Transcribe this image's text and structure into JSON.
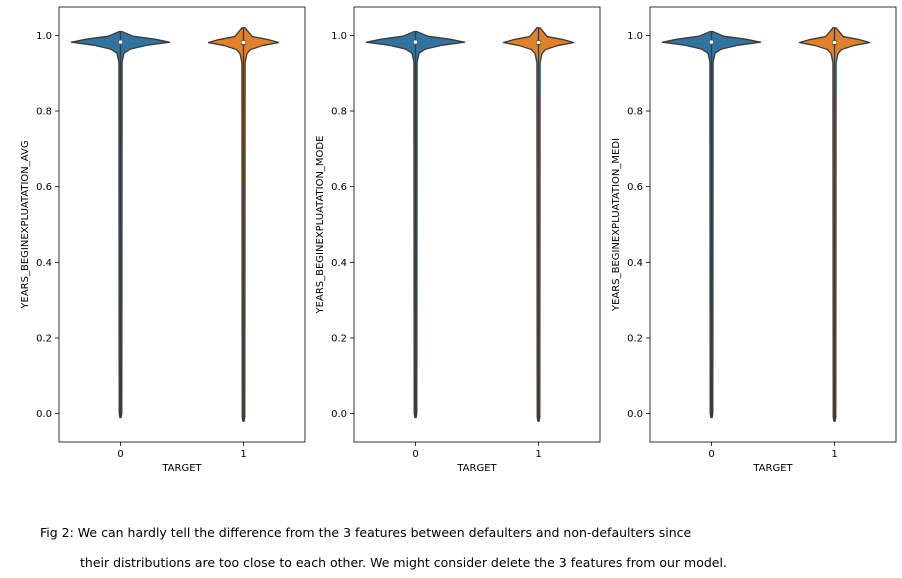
{
  "chart_data": [
    {
      "type": "violin",
      "xlabel": "TARGET",
      "ylabel": "YEARS_BEGINEXPLUATATION_AVG",
      "categories": [
        "0",
        "1"
      ],
      "yticks": [
        "0.0",
        "0.2",
        "0.4",
        "0.6",
        "0.8",
        "1.0"
      ],
      "ylim": [
        -0.075,
        1.075
      ],
      "series": [
        {
          "category": "0",
          "min": -0.01,
          "max": 1.01,
          "q1": 0.977,
          "median": 0.982,
          "q3": 0.986
        },
        {
          "category": "1",
          "min": -0.02,
          "max": 1.02,
          "q1": 0.974,
          "median": 0.981,
          "q3": 0.987
        }
      ]
    },
    {
      "type": "violin",
      "xlabel": "TARGET",
      "ylabel": "YEARS_BEGINEXPLUATATION_MODE",
      "categories": [
        "0",
        "1"
      ],
      "yticks": [
        "0.0",
        "0.2",
        "0.4",
        "0.6",
        "0.8",
        "1.0"
      ],
      "ylim": [
        -0.075,
        1.075
      ],
      "series": [
        {
          "category": "0",
          "min": -0.01,
          "max": 1.01,
          "q1": 0.977,
          "median": 0.982,
          "q3": 0.986
        },
        {
          "category": "1",
          "min": -0.02,
          "max": 1.02,
          "q1": 0.974,
          "median": 0.981,
          "q3": 0.987
        }
      ]
    },
    {
      "type": "violin",
      "xlabel": "TARGET",
      "ylabel": "YEARS_BEGINEXPLUATATION_MEDI",
      "categories": [
        "0",
        "1"
      ],
      "yticks": [
        "0.0",
        "0.2",
        "0.4",
        "0.6",
        "0.8",
        "1.0"
      ],
      "ylim": [
        -0.075,
        1.075
      ],
      "series": [
        {
          "category": "0",
          "min": -0.01,
          "max": 1.01,
          "q1": 0.977,
          "median": 0.982,
          "q3": 0.986
        },
        {
          "category": "1",
          "min": -0.02,
          "max": 1.02,
          "q1": 0.974,
          "median": 0.981,
          "q3": 0.987
        }
      ]
    }
  ],
  "colors": {
    "target_0": "#3274a1",
    "target_1": "#e1812c",
    "outline": "#3a3a3a"
  },
  "caption": {
    "line1": "Fig 2: We can hardly tell the difference from the 3 features between defaulters and non-defaulters since",
    "line2": "their distributions are too close to each other. We might consider delete the 3 features from our model."
  }
}
